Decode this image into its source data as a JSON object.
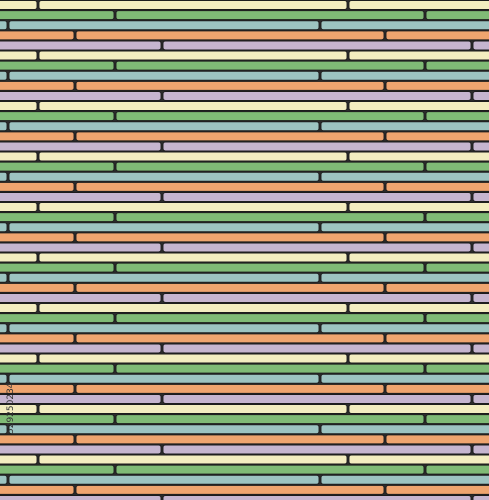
{
  "watermark": {
    "id": "529250234"
  }
}
